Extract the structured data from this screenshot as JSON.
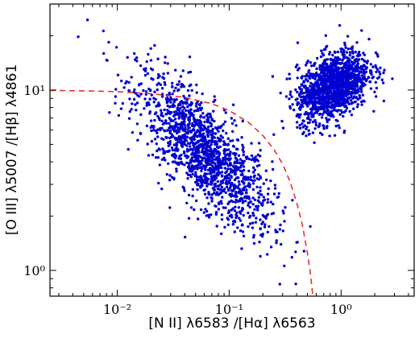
{
  "chart_data": {
    "type": "scatter",
    "title": "",
    "xlabel": "[N II] λ6583 /[Hα] λ6563",
    "ylabel": "[O III] λ5007 /[Hβ] λ4861",
    "xscale": "log",
    "yscale": "log",
    "xlim": [
      0.0025,
      4.5
    ],
    "ylim": [
      0.72,
      30
    ],
    "grid": false,
    "legend": "none",
    "xticks": [
      {
        "value": 0.01,
        "label": "10⁻²"
      },
      {
        "value": 0.1,
        "label": "10⁻¹"
      },
      {
        "value": 1,
        "label": "10⁰"
      }
    ],
    "yticks": [
      {
        "value": 1,
        "label": "10⁰"
      },
      {
        "value": 10,
        "label": "10¹"
      }
    ],
    "point_color": "#0000d0",
    "curve_color": "#e8302c",
    "series": [
      {
        "type": "scatter",
        "clusters": [
          {
            "center_x": 0.06,
            "center_y": 4.5,
            "spread_logx": 0.3,
            "spread_logy": 0.14,
            "tilt": -0.55,
            "count": 1500
          },
          {
            "center_x": 0.85,
            "center_y": 10.5,
            "spread_logx": 0.16,
            "spread_logy": 0.09,
            "tilt": 0.25,
            "count": 1400
          }
        ]
      },
      {
        "type": "line",
        "style": "dashed",
        "description_formula": "y = 10 / (1 - x/0.6)^? shaped demarcation",
        "points": [
          [
            0.0025,
            9.95
          ],
          [
            0.005,
            9.9
          ],
          [
            0.01,
            9.8
          ],
          [
            0.02,
            9.55
          ],
          [
            0.04,
            9.1
          ],
          [
            0.07,
            8.4
          ],
          [
            0.1,
            7.7
          ],
          [
            0.15,
            6.6
          ],
          [
            0.2,
            5.6
          ],
          [
            0.25,
            4.7
          ],
          [
            0.3,
            3.9
          ],
          [
            0.35,
            3.1
          ],
          [
            0.4,
            2.4
          ],
          [
            0.45,
            1.8
          ],
          [
            0.5,
            1.25
          ],
          [
            0.53,
            0.98
          ],
          [
            0.56,
            0.72
          ]
        ]
      }
    ]
  }
}
